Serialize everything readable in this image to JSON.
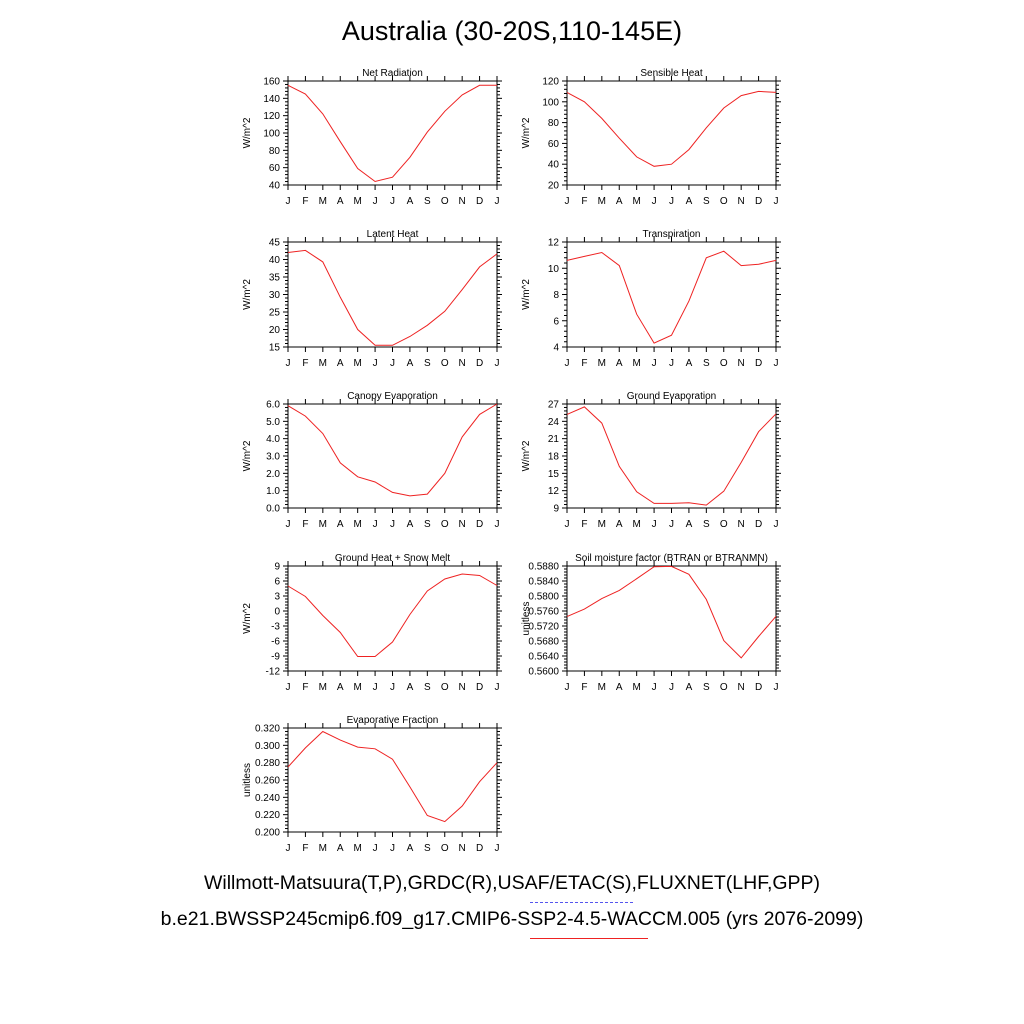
{
  "title": "Australia (30-20S,110-145E)",
  "legend": {
    "observations": "Willmott-Matsuura(T,P),GRDC(R),USAF/ETAC(S),FLUXNET(LHF,GPP)",
    "model": "b.e21.BWSSP245cmip6.f09_g17.CMIP6-SSP2-4.5-WACCM.005 (yrs 2076-2099)",
    "observations_color": "#5555ee",
    "model_color": "#ee2222"
  },
  "chart_data": [
    {
      "type": "line",
      "title": "Net Radiation",
      "ylabel": "W/m^2",
      "categories": [
        "J",
        "F",
        "M",
        "A",
        "M",
        "J",
        "J",
        "A",
        "S",
        "O",
        "N",
        "D",
        "J"
      ],
      "ylim": [
        40,
        160
      ],
      "yticks": [
        40,
        60,
        80,
        100,
        120,
        140,
        160
      ],
      "decimals": 0,
      "series": [
        {
          "values": [
            155,
            145,
            122,
            90,
            59,
            44,
            49,
            72,
            101,
            125,
            144,
            155,
            155
          ],
          "color": "#ee2222"
        }
      ]
    },
    {
      "type": "line",
      "title": "Sensible Heat",
      "ylabel": "W/m^2",
      "categories": [
        "J",
        "F",
        "M",
        "A",
        "M",
        "J",
        "J",
        "A",
        "S",
        "O",
        "N",
        "D",
        "J"
      ],
      "ylim": [
        20,
        120
      ],
      "yticks": [
        20,
        40,
        60,
        80,
        100,
        120
      ],
      "decimals": 0,
      "series": [
        {
          "values": [
            109,
            100,
            84,
            65,
            47,
            38,
            40,
            54,
            75,
            94,
            106,
            110,
            109
          ],
          "color": "#ee2222"
        }
      ]
    },
    {
      "type": "line",
      "title": "Latent Heat",
      "ylabel": "W/m^2",
      "categories": [
        "J",
        "F",
        "M",
        "A",
        "M",
        "J",
        "J",
        "A",
        "S",
        "O",
        "N",
        "D",
        "J"
      ],
      "ylim": [
        15,
        45
      ],
      "yticks": [
        15,
        20,
        25,
        30,
        35,
        40,
        45
      ],
      "decimals": 0,
      "series": [
        {
          "values": [
            42,
            42.6,
            39.3,
            29.2,
            20,
            15.5,
            15.5,
            18,
            21.2,
            25.2,
            31.4,
            37.9,
            41.6
          ],
          "color": "#ee2222"
        }
      ]
    },
    {
      "type": "line",
      "title": "Transpiration",
      "ylabel": "W/m^2",
      "categories": [
        "J",
        "F",
        "M",
        "A",
        "M",
        "J",
        "J",
        "A",
        "S",
        "O",
        "N",
        "D",
        "J"
      ],
      "ylim": [
        4,
        12
      ],
      "yticks": [
        4,
        6,
        8,
        10,
        12
      ],
      "decimals": 0,
      "series": [
        {
          "values": [
            10.6,
            10.9,
            11.2,
            10.2,
            6.5,
            4.3,
            4.9,
            7.5,
            10.8,
            11.3,
            10.2,
            10.3,
            10.6
          ],
          "color": "#ee2222"
        }
      ]
    },
    {
      "type": "line",
      "title": "Canopy Evaporation",
      "ylabel": "W/m^2",
      "categories": [
        "J",
        "F",
        "M",
        "A",
        "M",
        "J",
        "J",
        "A",
        "S",
        "O",
        "N",
        "D",
        "J"
      ],
      "ylim": [
        0,
        6
      ],
      "yticks": [
        0,
        1,
        2,
        3,
        4,
        5,
        6
      ],
      "decimals": 1,
      "series": [
        {
          "values": [
            5.9,
            5.3,
            4.3,
            2.6,
            1.8,
            1.5,
            0.9,
            0.7,
            0.8,
            2.0,
            4.1,
            5.4,
            6.0
          ],
          "color": "#ee2222"
        }
      ]
    },
    {
      "type": "line",
      "title": "Ground Evaporation",
      "ylabel": "W/m^2",
      "categories": [
        "J",
        "F",
        "M",
        "A",
        "M",
        "J",
        "J",
        "A",
        "S",
        "O",
        "N",
        "D",
        "J"
      ],
      "ylim": [
        9,
        27
      ],
      "yticks": [
        9,
        12,
        15,
        18,
        21,
        24,
        27
      ],
      "decimals": 0,
      "series": [
        {
          "values": [
            25.2,
            26.5,
            23.7,
            16.2,
            11.8,
            9.8,
            9.8,
            9.9,
            9.5,
            11.9,
            16.9,
            22.2,
            25.3
          ],
          "color": "#ee2222"
        }
      ]
    },
    {
      "type": "line",
      "title": "Ground Heat + Snow Melt",
      "ylabel": "W/m^2",
      "categories": [
        "J",
        "F",
        "M",
        "A",
        "M",
        "J",
        "J",
        "A",
        "S",
        "O",
        "N",
        "D",
        "J"
      ],
      "ylim": [
        -12,
        9
      ],
      "yticks": [
        -12,
        -9,
        -6,
        -3,
        0,
        3,
        6,
        9
      ],
      "decimals": 0,
      "series": [
        {
          "values": [
            5,
            2.9,
            -0.9,
            -4.3,
            -9.1,
            -9.1,
            -6.2,
            -0.7,
            4,
            6.4,
            7.4,
            7.1,
            5.1
          ],
          "color": "#ee2222"
        }
      ]
    },
    {
      "type": "line",
      "title": "Soil moisture factor (BTRAN or BTRANMN)",
      "ylabel": "unitless",
      "categories": [
        "J",
        "F",
        "M",
        "A",
        "M",
        "J",
        "J",
        "A",
        "S",
        "O",
        "N",
        "D",
        "J"
      ],
      "ylim": [
        0.56,
        0.588
      ],
      "yticks": [
        0.56,
        0.564,
        0.568,
        0.572,
        0.576,
        0.58,
        0.584,
        0.588
      ],
      "decimals": 4,
      "series": [
        {
          "values": [
            0.5745,
            0.5765,
            0.5793,
            0.5815,
            0.5846,
            0.5878,
            0.5879,
            0.5858,
            0.5791,
            0.5681,
            0.5635,
            0.5692,
            0.5746
          ],
          "color": "#ee2222"
        }
      ]
    },
    {
      "type": "line",
      "title": "Evaporative Fraction",
      "ylabel": "unitless",
      "categories": [
        "J",
        "F",
        "M",
        "A",
        "M",
        "J",
        "J",
        "A",
        "S",
        "O",
        "N",
        "D",
        "J"
      ],
      "ylim": [
        0.2,
        0.32
      ],
      "yticks": [
        0.2,
        0.22,
        0.24,
        0.26,
        0.28,
        0.3,
        0.32
      ],
      "decimals": 3,
      "series": [
        {
          "values": [
            0.275,
            0.297,
            0.316,
            0.306,
            0.298,
            0.296,
            0.284,
            0.252,
            0.219,
            0.212,
            0.23,
            0.258,
            0.28
          ],
          "color": "#ee2222"
        }
      ]
    }
  ]
}
